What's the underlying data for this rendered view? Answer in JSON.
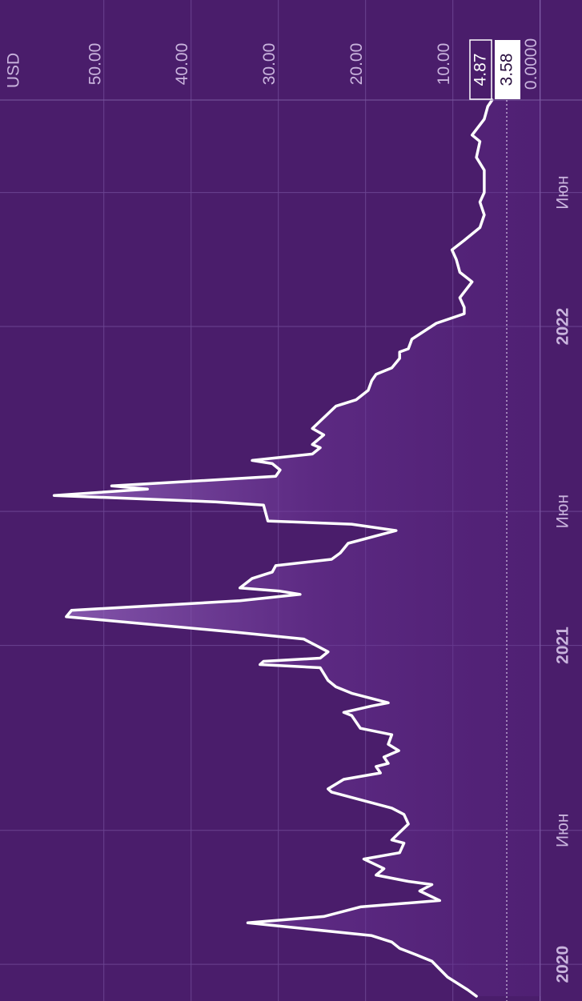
{
  "chart_data": {
    "type": "line",
    "unit_label": "USD",
    "color": "#ffffff",
    "grid": true,
    "ylim": [
      -4.8,
      61.9
    ],
    "yticks": [
      {
        "value": 0,
        "label": "0.0000"
      },
      {
        "value": 10,
        "label": "10.00"
      },
      {
        "value": 20,
        "label": "20.00"
      },
      {
        "value": 30,
        "label": "30.00"
      },
      {
        "value": 40,
        "label": "40.00"
      },
      {
        "value": 50,
        "label": "50.00"
      }
    ],
    "xlim": [
      2019.885,
      2022.71
    ],
    "xticks": [
      {
        "value": 2020,
        "label": "2020"
      },
      {
        "value": 2020.42,
        "label": "Июн"
      },
      {
        "value": 2021,
        "label": "2021"
      },
      {
        "value": 2021.42,
        "label": "Июн"
      },
      {
        "value": 2022,
        "label": "2022"
      },
      {
        "value": 2022.42,
        "label": "Июн"
      }
    ],
    "annotations": [
      "4.87",
      "3.58"
    ],
    "x": [
      2019.9,
      2019.92,
      2019.96,
      2019.99,
      2020.01,
      2020.03,
      2020.05,
      2020.07,
      2020.09,
      2020.13,
      2020.15,
      2020.18,
      2020.2,
      2020.23,
      2020.25,
      2020.26,
      2020.28,
      2020.3,
      2020.33,
      2020.35,
      2020.38,
      2020.39,
      2020.44,
      2020.47,
      2020.49,
      2020.54,
      2020.55,
      2020.58,
      2020.6,
      2020.62,
      2020.63,
      2020.65,
      2020.67,
      2020.69,
      2020.72,
      2020.74,
      2020.78,
      2020.79,
      2020.81,
      2020.82,
      2020.85,
      2020.87,
      2020.89,
      2020.93,
      2020.94,
      2020.95,
      2020.96,
      2020.98,
      2021.0,
      2021.02,
      2021.04,
      2021.09,
      2021.11,
      2021.14,
      2021.16,
      2021.17,
      2021.18,
      2021.21,
      2021.23,
      2021.25,
      2021.27,
      2021.29,
      2021.32,
      2021.36,
      2021.38,
      2021.39,
      2021.44,
      2021.45,
      2021.47,
      2021.49,
      2021.5,
      2021.53,
      2021.55,
      2021.57,
      2021.58,
      2021.6,
      2021.62,
      2021.63,
      2021.66,
      2021.68,
      2021.75,
      2021.77,
      2021.8,
      2021.83,
      2021.85,
      2021.87,
      2021.9,
      2021.92,
      2021.93,
      2021.96,
      2022.01,
      2022.04,
      2022.06,
      2022.09,
      2022.14,
      2022.17,
      2022.21,
      2022.24,
      2022.27,
      2022.31,
      2022.35,
      2022.39,
      2022.42,
      2022.46,
      2022.49,
      2022.53,
      2022.58,
      2022.6,
      2022.65,
      2022.69,
      2022.71
    ],
    "values": [
      7.3,
      8.3,
      10.6,
      11.7,
      12.4,
      14.2,
      16.1,
      17.0,
      19.3,
      33.5,
      24.8,
      20.6,
      11.5,
      13.8,
      12.4,
      15.1,
      18.8,
      17.9,
      20.2,
      16.1,
      15.6,
      17.0,
      15.1,
      15.6,
      17.0,
      23.9,
      24.3,
      22.5,
      18.3,
      18.8,
      17.4,
      17.9,
      16.2,
      17.4,
      17.0,
      20.6,
      21.6,
      22.5,
      19.3,
      17.4,
      21.6,
      23.4,
      24.3,
      25.2,
      32.1,
      31.7,
      25.2,
      24.3,
      25.7,
      27.1,
      34.4,
      54.3,
      53.7,
      34.4,
      27.5,
      29.8,
      34.4,
      33.0,
      30.7,
      30.3,
      23.9,
      22.9,
      22.0,
      16.5,
      21.6,
      31.2,
      31.7,
      37.2,
      55.7,
      45.0,
      49.1,
      30.3,
      29.8,
      30.7,
      33.0,
      26.1,
      25.2,
      26.1,
      24.8,
      26.1,
      23.4,
      21.1,
      19.7,
      19.3,
      18.8,
      17.0,
      16.1,
      16.1,
      15.1,
      14.7,
      11.9,
      8.7,
      8.7,
      9.2,
      7.8,
      9.2,
      9.6,
      10.1,
      8.7,
      6.9,
      6.4,
      6.9,
      6.4,
      6.4,
      6.4,
      7.3,
      6.9,
      7.8,
      6.4,
      6.0,
      5.5
    ]
  }
}
